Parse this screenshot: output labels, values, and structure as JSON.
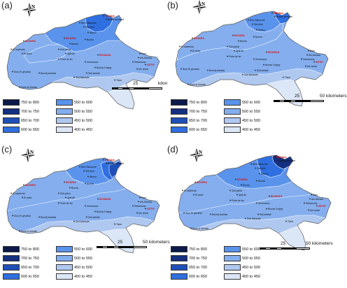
{
  "panels": [
    {
      "id": "a",
      "label": "(a)",
      "scale_unit": "kilon"
    },
    {
      "id": "b",
      "label": "(b)",
      "scale_unit": "50 kilometers"
    },
    {
      "id": "c",
      "label": "(c)",
      "scale_unit": "50 kilometers"
    },
    {
      "id": "d",
      "label": "(d)",
      "scale_unit": "50 kilometers"
    }
  ],
  "north_label": "N",
  "scale_mid": "25",
  "legend": [
    {
      "text": "750 to 800",
      "color": "#0b1a4a"
    },
    {
      "text": "700 to 750",
      "color": "#14307f"
    },
    {
      "text": "650 to 700",
      "color": "#1f4fb8"
    },
    {
      "text": "600 to 650",
      "color": "#2f6fe0"
    },
    {
      "text": "550 to 600",
      "color": "#5a93ec"
    },
    {
      "text": "500 to 550",
      "color": "#84aeee"
    },
    {
      "text": "450 to 500",
      "color": "#afc8f0"
    },
    {
      "text": "400 to 450",
      "color": "#dbe6f7"
    }
  ],
  "places_red": [
    "BEJAIA",
    "BOUIRA",
    "BOUIRA",
    "BOUDAS",
    "SETIF"
  ],
  "places": [
    "Bejaia aeroport",
    "Beni Maouche",
    "Sidi Aich",
    "Akbou",
    "Bouira",
    "Bouira",
    "Sidi yahia",
    "Ighil Ali",
    "El hachimia",
    "El anes",
    "Porte de fer",
    "Zemmoura",
    "Bouira Colgny",
    "Ain Abessa",
    "Dehamcha",
    "Ain arnat",
    "Sour El ghozlan",
    "Bourdj sukhlas",
    "Sidi sebtali",
    "Sidi Metarate",
    "Souk el khemis",
    "Tixter",
    "Dem"
  ]
}
